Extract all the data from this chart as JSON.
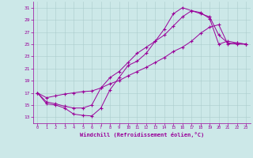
{
  "xlabel": "Windchill (Refroidissement éolien,°C)",
  "xlim": [
    -0.5,
    23.5
  ],
  "ylim": [
    12,
    32
  ],
  "xticks": [
    0,
    1,
    2,
    3,
    4,
    5,
    6,
    7,
    8,
    9,
    10,
    11,
    12,
    13,
    14,
    15,
    16,
    17,
    18,
    19,
    20,
    21,
    22,
    23
  ],
  "yticks": [
    13,
    15,
    17,
    19,
    21,
    23,
    25,
    27,
    29,
    31
  ],
  "bg_color": "#cce8e8",
  "line_color": "#990099",
  "grid_color": "#aacccc",
  "line1_x": [
    0,
    1,
    2,
    3,
    4,
    5,
    6,
    7,
    8,
    9,
    10,
    11,
    12,
    13,
    14,
    15,
    16,
    17,
    18,
    19,
    20,
    21,
    22,
    23
  ],
  "line1_y": [
    17.0,
    15.2,
    15.0,
    14.5,
    13.5,
    13.3,
    13.2,
    14.5,
    17.5,
    19.5,
    21.5,
    22.2,
    23.5,
    25.5,
    26.5,
    28.0,
    29.5,
    30.5,
    30.2,
    29.2,
    25.0,
    25.5,
    25.2,
    25.0
  ],
  "line2_x": [
    0,
    1,
    2,
    3,
    4,
    5,
    6,
    7,
    8,
    9,
    10,
    11,
    12,
    13,
    14,
    15,
    16,
    17,
    18,
    19,
    20,
    21,
    22,
    23
  ],
  "line2_y": [
    17.0,
    16.2,
    16.5,
    16.8,
    17.0,
    17.2,
    17.3,
    17.8,
    18.5,
    19.0,
    19.8,
    20.5,
    21.2,
    22.0,
    22.8,
    23.8,
    24.5,
    25.5,
    26.8,
    27.8,
    28.2,
    25.0,
    25.2,
    25.0
  ],
  "line3_x": [
    0,
    1,
    2,
    3,
    4,
    5,
    6,
    7,
    8,
    9,
    10,
    11,
    12,
    13,
    14,
    15,
    16,
    17,
    18,
    19,
    20,
    21,
    22,
    23
  ],
  "line3_y": [
    17.0,
    15.5,
    15.2,
    14.8,
    14.5,
    14.5,
    15.0,
    17.8,
    19.5,
    20.5,
    22.0,
    23.5,
    24.5,
    25.5,
    27.5,
    30.0,
    31.0,
    30.5,
    30.0,
    29.5,
    26.5,
    25.2,
    25.0,
    25.0
  ]
}
